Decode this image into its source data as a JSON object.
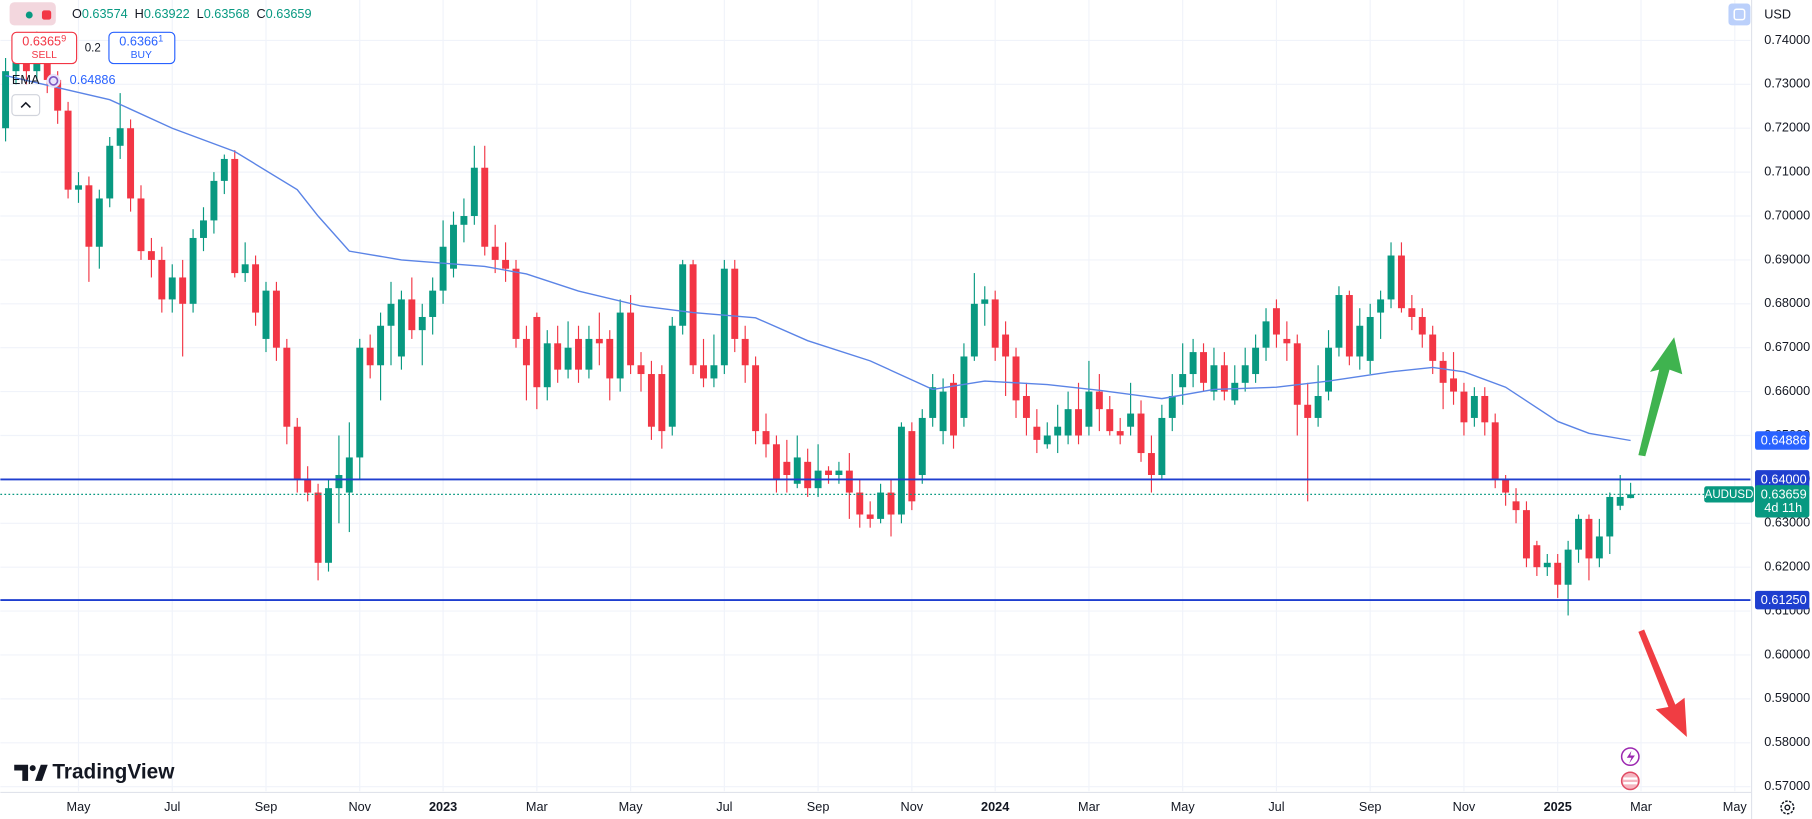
{
  "chart_data": {
    "type": "candlestick",
    "symbol": "AUDUSD",
    "up_color": "#089981",
    "down_color": "#f23645",
    "grid": true,
    "xlim": [
      -0.5,
      167.5
    ],
    "ylim": [
      0.56895,
      0.74921
    ],
    "xticks": [
      {
        "value": 7,
        "label": "May"
      },
      {
        "value": 16,
        "label": "Jul"
      },
      {
        "value": 25,
        "label": "Sep"
      },
      {
        "value": 34,
        "label": "Nov"
      },
      {
        "value": 42,
        "label": "2023"
      },
      {
        "value": 51,
        "label": "Mar"
      },
      {
        "value": 60,
        "label": "May"
      },
      {
        "value": 69,
        "label": "Jul"
      },
      {
        "value": 78,
        "label": "Sep"
      },
      {
        "value": 87,
        "label": "Nov"
      },
      {
        "value": 95,
        "label": "2024"
      },
      {
        "value": 104,
        "label": "Mar"
      },
      {
        "value": 113,
        "label": "May"
      },
      {
        "value": 122,
        "label": "Jul"
      },
      {
        "value": 131,
        "label": "Sep"
      },
      {
        "value": 140,
        "label": "Nov"
      },
      {
        "value": 149,
        "label": "2025"
      },
      {
        "value": 157,
        "label": "Mar"
      },
      {
        "value": 166,
        "label": "May"
      }
    ],
    "yticks": [
      {
        "value": 0.74,
        "label": "0.74000"
      },
      {
        "value": 0.73,
        "label": "0.73000"
      },
      {
        "value": 0.72,
        "label": "0.72000"
      },
      {
        "value": 0.71,
        "label": "0.71000"
      },
      {
        "value": 0.7,
        "label": "0.70000"
      },
      {
        "value": 0.69,
        "label": "0.69000"
      },
      {
        "value": 0.68,
        "label": "0.68000"
      },
      {
        "value": 0.67,
        "label": "0.67000"
      },
      {
        "value": 0.66,
        "label": "0.66000"
      },
      {
        "value": 0.65,
        "label": "0.65000"
      },
      {
        "value": 0.64,
        "label": "0.64000"
      },
      {
        "value": 0.63,
        "label": "0.63000"
      },
      {
        "value": 0.62,
        "label": "0.62000"
      },
      {
        "value": 0.61,
        "label": "0.61000"
      },
      {
        "value": 0.6,
        "label": "0.60000"
      },
      {
        "value": 0.59,
        "label": "0.59000"
      },
      {
        "value": 0.58,
        "label": "0.58000"
      },
      {
        "value": 0.57,
        "label": "0.57000"
      }
    ],
    "open": [
      0.72,
      0.733,
      0.738,
      0.733,
      0.739,
      0.731,
      0.724,
      0.706,
      0.707,
      0.693,
      0.704,
      0.716,
      0.72,
      0.704,
      0.692,
      0.69,
      0.681,
      0.686,
      0.68,
      0.695,
      0.699,
      0.708,
      0.713,
      0.687,
      0.689,
      0.672,
      0.683,
      0.67,
      0.652,
      0.64,
      0.637,
      0.621,
      0.638,
      0.637,
      0.645,
      0.67,
      0.666,
      0.675,
      0.668,
      0.681,
      0.674,
      0.677,
      0.683,
      0.688,
      0.698,
      0.7,
      0.711,
      0.693,
      0.69,
      0.688,
      0.672,
      0.677,
      0.661,
      0.671,
      0.665,
      0.672,
      0.665,
      0.672,
      0.672,
      0.663,
      0.678,
      0.666,
      0.664,
      0.664,
      0.652,
      0.675,
      0.689,
      0.666,
      0.663,
      0.666,
      0.688,
      0.672,
      0.666,
      0.651,
      0.648,
      0.644,
      0.639,
      0.644,
      0.638,
      0.642,
      0.641,
      0.642,
      0.637,
      0.632,
      0.631,
      0.637,
      0.632,
      0.651,
      0.641,
      0.654,
      0.651,
      0.662,
      0.654,
      0.668,
      0.68,
      0.681,
      0.673,
      0.668,
      0.659,
      0.652,
      0.648,
      0.65,
      0.65,
      0.656,
      0.652,
      0.66,
      0.656,
      0.651,
      0.652,
      0.655,
      0.646,
      0.641,
      0.654,
      0.661,
      0.664,
      0.669,
      0.66,
      0.666,
      0.658,
      0.662,
      0.664,
      0.67,
      0.679,
      0.672,
      0.671,
      0.657,
      0.654,
      0.66,
      0.67,
      0.682,
      0.668,
      0.667,
      0.678,
      0.681,
      0.691,
      0.679,
      0.677,
      0.673,
      0.667,
      0.663,
      0.66,
      0.654,
      0.659,
      0.653,
      0.64,
      0.635,
      0.633,
      0.625,
      0.62,
      0.621,
      0.616,
      0.624,
      0.631,
      0.622,
      0.627,
      0.634,
      0.63574
    ],
    "high": [
      0.736,
      0.741,
      0.741,
      0.742,
      0.741,
      0.733,
      0.726,
      0.71,
      0.709,
      0.706,
      0.718,
      0.728,
      0.722,
      0.707,
      0.695,
      0.693,
      0.689,
      0.69,
      0.697,
      0.702,
      0.71,
      0.714,
      0.715,
      0.694,
      0.691,
      0.685,
      0.685,
      0.672,
      0.654,
      0.643,
      0.639,
      0.64,
      0.65,
      0.653,
      0.672,
      0.673,
      0.678,
      0.685,
      0.683,
      0.686,
      0.68,
      0.686,
      0.699,
      0.701,
      0.704,
      0.716,
      0.716,
      0.698,
      0.694,
      0.69,
      0.675,
      0.678,
      0.674,
      0.675,
      0.676,
      0.675,
      0.675,
      0.678,
      0.674,
      0.681,
      0.682,
      0.669,
      0.667,
      0.666,
      0.677,
      0.69,
      0.69,
      0.672,
      0.673,
      0.69,
      0.69,
      0.675,
      0.668,
      0.655,
      0.65,
      0.649,
      0.65,
      0.647,
      0.648,
      0.643,
      0.644,
      0.646,
      0.64,
      0.635,
      0.639,
      0.64,
      0.653,
      0.653,
      0.656,
      0.664,
      0.663,
      0.664,
      0.671,
      0.687,
      0.684,
      0.683,
      0.676,
      0.67,
      0.662,
      0.656,
      0.653,
      0.657,
      0.66,
      0.662,
      0.667,
      0.664,
      0.659,
      0.654,
      0.662,
      0.658,
      0.65,
      0.657,
      0.664,
      0.671,
      0.672,
      0.671,
      0.67,
      0.669,
      0.666,
      0.67,
      0.673,
      0.679,
      0.681,
      0.676,
      0.673,
      0.662,
      0.666,
      0.674,
      0.684,
      0.683,
      0.679,
      0.68,
      0.683,
      0.694,
      0.694,
      0.682,
      0.679,
      0.675,
      0.669,
      0.669,
      0.662,
      0.661,
      0.661,
      0.655,
      0.641,
      0.638,
      0.635,
      0.626,
      0.623,
      0.623,
      0.626,
      0.632,
      0.632,
      0.631,
      0.637,
      0.641,
      0.63922
    ],
    "low": [
      0.717,
      0.73,
      0.73,
      0.731,
      0.728,
      0.721,
      0.704,
      0.703,
      0.685,
      0.688,
      0.702,
      0.713,
      0.701,
      0.69,
      0.686,
      0.678,
      0.678,
      0.668,
      0.678,
      0.692,
      0.696,
      0.705,
      0.686,
      0.685,
      0.675,
      0.669,
      0.667,
      0.648,
      0.637,
      0.635,
      0.617,
      0.619,
      0.63,
      0.628,
      0.64,
      0.663,
      0.658,
      0.666,
      0.665,
      0.672,
      0.666,
      0.673,
      0.68,
      0.686,
      0.694,
      0.698,
      0.691,
      0.687,
      0.685,
      0.67,
      0.658,
      0.656,
      0.658,
      0.662,
      0.663,
      0.662,
      0.663,
      0.666,
      0.658,
      0.66,
      0.664,
      0.66,
      0.649,
      0.647,
      0.65,
      0.673,
      0.664,
      0.661,
      0.661,
      0.664,
      0.669,
      0.662,
      0.648,
      0.645,
      0.637,
      0.637,
      0.638,
      0.636,
      0.636,
      0.639,
      0.639,
      0.631,
      0.629,
      0.629,
      0.63,
      0.627,
      0.63,
      0.633,
      0.639,
      0.652,
      0.648,
      0.647,
      0.652,
      0.667,
      0.675,
      0.667,
      0.659,
      0.654,
      0.65,
      0.646,
      0.647,
      0.646,
      0.648,
      0.648,
      0.65,
      0.651,
      0.65,
      0.648,
      0.65,
      0.644,
      0.637,
      0.64,
      0.651,
      0.657,
      0.661,
      0.66,
      0.658,
      0.658,
      0.657,
      0.66,
      0.662,
      0.667,
      0.67,
      0.667,
      0.65,
      0.635,
      0.652,
      0.658,
      0.668,
      0.666,
      0.665,
      0.664,
      0.672,
      0.679,
      0.678,
      0.674,
      0.67,
      0.664,
      0.656,
      0.657,
      0.65,
      0.652,
      0.65,
      0.638,
      0.634,
      0.63,
      0.62,
      0.618,
      0.618,
      0.613,
      0.609,
      0.621,
      0.617,
      0.62,
      0.623,
      0.633,
      0.63568
    ],
    "close": [
      0.733,
      0.738,
      0.733,
      0.739,
      0.731,
      0.724,
      0.706,
      0.707,
      0.693,
      0.704,
      0.716,
      0.72,
      0.704,
      0.692,
      0.69,
      0.681,
      0.686,
      0.68,
      0.695,
      0.699,
      0.708,
      0.713,
      0.687,
      0.689,
      0.678,
      0.683,
      0.67,
      0.652,
      0.64,
      0.637,
      0.621,
      0.638,
      0.641,
      0.645,
      0.67,
      0.666,
      0.675,
      0.68,
      0.681,
      0.674,
      0.677,
      0.683,
      0.693,
      0.698,
      0.7,
      0.711,
      0.693,
      0.69,
      0.688,
      0.672,
      0.666,
      0.661,
      0.671,
      0.665,
      0.67,
      0.665,
      0.672,
      0.671,
      0.663,
      0.678,
      0.666,
      0.664,
      0.652,
      0.651,
      0.675,
      0.689,
      0.666,
      0.663,
      0.666,
      0.688,
      0.672,
      0.666,
      0.651,
      0.648,
      0.64,
      0.641,
      0.645,
      0.638,
      0.642,
      0.641,
      0.642,
      0.637,
      0.632,
      0.631,
      0.637,
      0.632,
      0.652,
      0.635,
      0.654,
      0.661,
      0.66,
      0.65,
      0.668,
      0.68,
      0.681,
      0.67,
      0.668,
      0.658,
      0.654,
      0.649,
      0.65,
      0.652,
      0.656,
      0.65,
      0.66,
      0.656,
      0.651,
      0.65,
      0.655,
      0.646,
      0.641,
      0.654,
      0.659,
      0.664,
      0.669,
      0.662,
      0.666,
      0.66,
      0.662,
      0.666,
      0.67,
      0.676,
      0.673,
      0.671,
      0.657,
      0.654,
      0.659,
      0.67,
      0.682,
      0.668,
      0.675,
      0.677,
      0.681,
      0.691,
      0.679,
      0.677,
      0.673,
      0.667,
      0.662,
      0.66,
      0.653,
      0.659,
      0.653,
      0.64,
      0.637,
      0.633,
      0.622,
      0.62,
      0.621,
      0.616,
      0.624,
      0.631,
      0.622,
      0.627,
      0.636,
      0.636,
      0.63659
    ],
    "ema": {
      "name": "EMA",
      "color": "#5b84e6",
      "label_color": "#2962ff",
      "x": [
        0,
        10,
        16,
        22,
        28,
        30,
        33,
        38,
        46,
        50,
        55,
        61,
        66,
        72,
        77,
        83,
        89,
        94,
        100,
        105,
        111,
        116,
        122,
        127,
        133,
        137,
        140,
        144,
        149,
        152,
        156
      ],
      "values": [
        0.732,
        0.7265,
        0.72,
        0.7147,
        0.706,
        0.7,
        0.692,
        0.69,
        0.6885,
        0.6868,
        0.6829,
        0.6795,
        0.678,
        0.6768,
        0.6716,
        0.667,
        0.6605,
        0.6624,
        0.6616,
        0.6603,
        0.6584,
        0.6605,
        0.661,
        0.6624,
        0.6645,
        0.6655,
        0.6645,
        0.661,
        0.6532,
        0.6505,
        0.64886
      ]
    },
    "hline_color": "#1f3fcf",
    "hlines": [
      {
        "value": 0.64,
        "label": "0.64000"
      },
      {
        "value": 0.6125,
        "label": "0.61250"
      }
    ],
    "countdown": "4d 11h"
  },
  "ohlc_keys": [
    "O",
    "H",
    "L",
    "C"
  ],
  "trade": {
    "sell_price": "0.6365",
    "sell_pip": "9",
    "sell_label": "SELL",
    "spread": "0.2",
    "buy_price": "0.6366",
    "buy_pip": "1",
    "buy_label": "BUY"
  },
  "currency": "USD",
  "brand": "TradingView"
}
